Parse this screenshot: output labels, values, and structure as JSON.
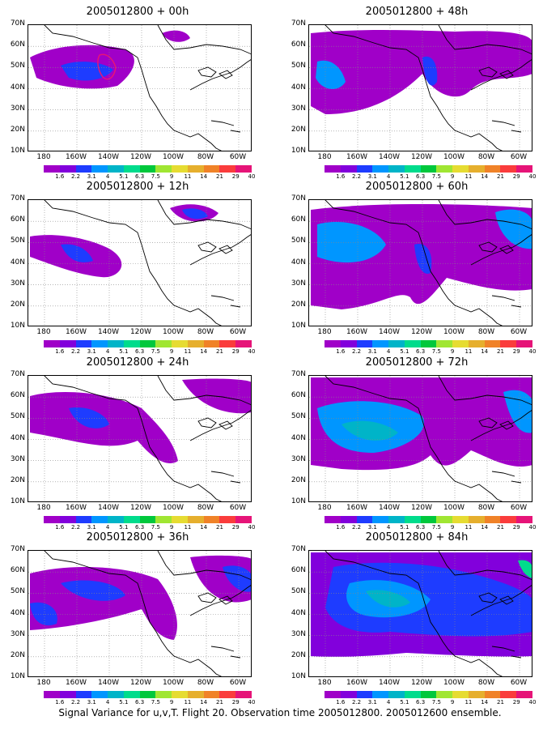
{
  "palette": [
    "#a000c8",
    "#8200dc",
    "#1e3cff",
    "#0096ff",
    "#00b4c8",
    "#00dc8c",
    "#00c83c",
    "#a0e632",
    "#e6dc32",
    "#e6af2d",
    "#f08228",
    "#fa3c3c",
    "#e61478"
  ],
  "colorbar_labels": [
    "1.6",
    "2.2",
    "3.1",
    "4",
    "5.1",
    "6.3",
    "7.5",
    "9",
    "11",
    "14",
    "21",
    "29",
    "40"
  ],
  "lat_labels": [
    "70N",
    "60N",
    "50N",
    "40N",
    "30N",
    "20N",
    "10N"
  ],
  "lon_labels": [
    "180",
    "160W",
    "140W",
    "120W",
    "100W",
    "80W",
    "60W"
  ],
  "panels": [
    {
      "title": "2005012800 + 00h"
    },
    {
      "title": "2005012800 + 48h"
    },
    {
      "title": "2005012800 + 12h"
    },
    {
      "title": "2005012800 + 60h"
    },
    {
      "title": "2005012800 + 24h"
    },
    {
      "title": "2005012800 + 72h"
    },
    {
      "title": "2005012800 + 36h"
    },
    {
      "title": "2005012800 + 84h"
    }
  ],
  "footer": "Signal Variance for u,v,T. Flight 20. Observation time 2005012800. 2005012600 ensemble."
}
